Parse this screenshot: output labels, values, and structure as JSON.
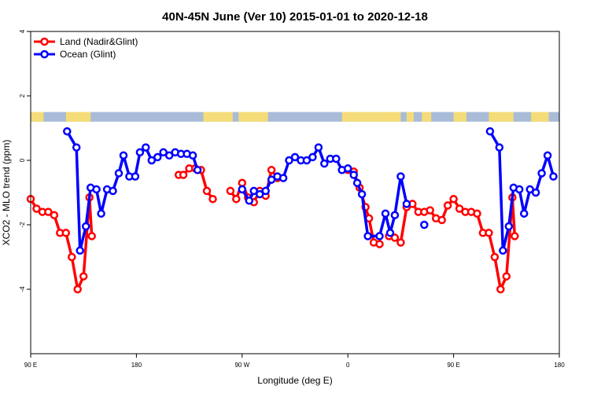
{
  "chart_data": {
    "type": "line",
    "title": "40N-45N June (Ver 10)   2015-01-01 to 2020-12-18",
    "xlabel": "Longitude (deg E)",
    "ylabel": "XCO2 - MLO trend (ppm)",
    "xlim": [
      90,
      540
    ],
    "ylim": [
      -6.0,
      4.0
    ],
    "x_ticks": [
      {
        "value": 90,
        "label": "90 E"
      },
      {
        "value": 180,
        "label": "180"
      },
      {
        "value": 270,
        "label": "90 W"
      },
      {
        "value": 360,
        "label": "0"
      },
      {
        "value": 450,
        "label": "90 E"
      },
      {
        "value": 540,
        "label": "180"
      }
    ],
    "y_ticks": [
      {
        "value": 4,
        "label": "4"
      },
      {
        "value": 2,
        "label": "2"
      },
      {
        "value": 0,
        "label": "0"
      },
      {
        "value": -2,
        "label": "-2"
      },
      {
        "value": -4,
        "label": "-4"
      }
    ],
    "legend_position": "top-left",
    "grid": false,
    "series": [
      {
        "name": "Land (Nadir&Glint)",
        "color": "#ff0000",
        "segments": [
          [
            [
              90,
              -1.2
            ],
            [
              95,
              -1.5
            ],
            [
              100,
              -1.6
            ],
            [
              105,
              -1.6
            ],
            [
              110,
              -1.7
            ],
            [
              115,
              -2.25
            ],
            [
              120,
              -2.25
            ],
            [
              125,
              -3.0
            ],
            [
              130,
              -4.0
            ],
            [
              135,
              -3.6
            ],
            [
              140,
              -1.15
            ],
            [
              142,
              -2.35
            ]
          ],
          [
            [
              260,
              -0.95
            ],
            [
              265,
              -1.2
            ],
            [
              270,
              -0.7
            ],
            [
              275,
              -1.15
            ],
            [
              280,
              -1.3
            ],
            [
              285,
              -0.95
            ],
            [
              290,
              -1.1
            ],
            [
              295,
              -0.3
            ],
            [
              300,
              -0.55
            ]
          ],
          [
            [
              216,
              -0.45
            ],
            [
              220,
              -0.45
            ],
            [
              225,
              -0.25
            ],
            [
              230,
              -0.25
            ],
            [
              235,
              -0.3
            ],
            [
              240,
              -0.95
            ],
            [
              245,
              -1.2
            ]
          ],
          [
            [
              360,
              -0.3
            ],
            [
              365,
              -0.35
            ],
            [
              370,
              -0.85
            ],
            [
              375,
              -1.45
            ],
            [
              378,
              -1.8
            ],
            [
              382,
              -2.55
            ],
            [
              387,
              -2.6
            ]
          ],
          [
            [
              395,
              -2.35
            ],
            [
              400,
              -2.4
            ],
            [
              405,
              -2.55
            ],
            [
              410,
              -1.45
            ],
            [
              415,
              -1.35
            ],
            [
              420,
              -1.6
            ],
            [
              425,
              -1.6
            ],
            [
              430,
              -1.55
            ],
            [
              435,
              -1.8
            ],
            [
              440,
              -1.85
            ],
            [
              445,
              -1.4
            ],
            [
              450,
              -1.2
            ],
            [
              455,
              -1.5
            ],
            [
              460,
              -1.6
            ],
            [
              465,
              -1.6
            ],
            [
              470,
              -1.65
            ],
            [
              475,
              -2.25
            ],
            [
              480,
              -2.25
            ],
            [
              485,
              -3.0
            ],
            [
              490,
              -4.0
            ],
            [
              495,
              -3.6
            ],
            [
              500,
              -1.15
            ],
            [
              502,
              -2.35
            ]
          ]
        ]
      },
      {
        "name": "Ocean (Glint)",
        "color": "#0000ff",
        "segments": [
          [
            [
              121,
              0.9
            ],
            [
              129,
              0.4
            ],
            [
              132,
              -2.8
            ],
            [
              137,
              -2.05
            ],
            [
              141,
              -0.85
            ],
            [
              146,
              -0.9
            ],
            [
              150,
              -1.65
            ],
            [
              155,
              -0.9
            ],
            [
              160,
              -0.95
            ],
            [
              165,
              -0.4
            ],
            [
              169,
              0.15
            ],
            [
              174,
              -0.5
            ],
            [
              179,
              -0.5
            ],
            [
              183,
              0.25
            ],
            [
              188,
              0.4
            ],
            [
              193,
              0.0
            ],
            [
              198,
              0.1
            ],
            [
              203,
              0.25
            ],
            [
              208,
              0.15
            ],
            [
              213,
              0.25
            ],
            [
              218,
              0.2
            ],
            [
              223,
              0.2
            ],
            [
              228,
              0.15
            ],
            [
              232,
              -0.3
            ]
          ],
          [
            [
              270,
              -0.9
            ],
            [
              276,
              -1.25
            ],
            [
              280,
              -0.95
            ],
            [
              285,
              -1.05
            ],
            [
              290,
              -0.95
            ],
            [
              295,
              -0.6
            ],
            [
              300,
              -0.5
            ],
            [
              305,
              -0.55
            ],
            [
              310,
              0.0
            ],
            [
              315,
              0.1
            ],
            [
              320,
              0.0
            ],
            [
              325,
              0.0
            ],
            [
              330,
              0.1
            ],
            [
              335,
              0.4
            ],
            [
              340,
              -0.1
            ],
            [
              345,
              0.05
            ],
            [
              350,
              0.05
            ],
            [
              355,
              -0.3
            ],
            [
              360,
              -0.25
            ],
            [
              365,
              -0.45
            ],
            [
              368,
              -0.7
            ],
            [
              372,
              -1.05
            ],
            [
              377,
              -2.35
            ],
            [
              387,
              -2.35
            ],
            [
              392,
              -1.65
            ],
            [
              396,
              -2.25
            ],
            [
              400,
              -1.7
            ],
            [
              405,
              -0.5
            ],
            [
              410,
              -1.35
            ]
          ],
          [
            [
              425,
              -2.0
            ]
          ],
          [
            [
              481,
              0.9
            ],
            [
              489,
              0.4
            ],
            [
              492,
              -2.8
            ],
            [
              497,
              -2.05
            ],
            [
              501,
              -0.85
            ],
            [
              506,
              -0.9
            ],
            [
              510,
              -1.65
            ],
            [
              515,
              -0.9
            ],
            [
              520,
              -1.0
            ],
            [
              525,
              -0.4
            ],
            [
              530,
              0.15
            ],
            [
              535,
              -0.5
            ]
          ]
        ]
      }
    ],
    "surface_bar": {
      "y_top": 1.5,
      "y_bottom": 1.2,
      "land_color": "#f5dc78",
      "ocean_color": "#a8bcd8",
      "land_ranges": [
        [
          90,
          101
        ],
        [
          120,
          141
        ],
        [
          237,
          262
        ],
        [
          267,
          292
        ],
        [
          355,
          405
        ],
        [
          410,
          416
        ],
        [
          423,
          431
        ],
        [
          450,
          461
        ],
        [
          480,
          501
        ],
        [
          516,
          531
        ]
      ]
    }
  }
}
